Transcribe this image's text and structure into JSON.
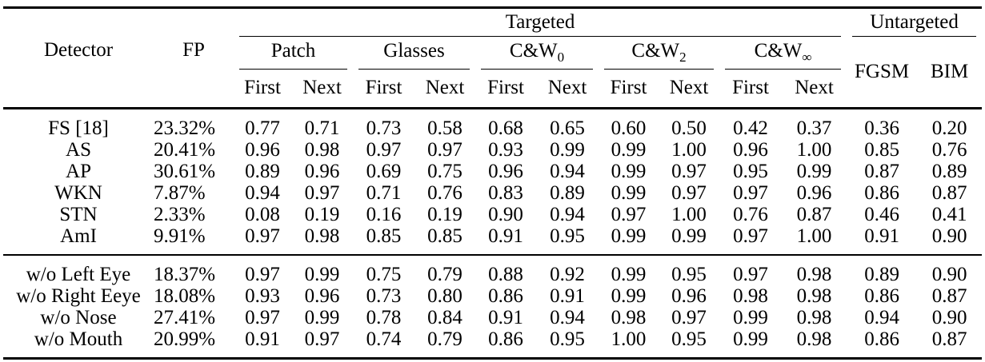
{
  "colors": {
    "background": "#ffffff",
    "text": "#000000"
  },
  "table": {
    "col_groups": {
      "targeted": "Targeted",
      "untargeted": "Untargeted"
    },
    "headers": {
      "detector": "Detector",
      "fp": "FP",
      "sub_columns": [
        "First",
        "Next"
      ],
      "attack_groups": [
        {
          "name": "Patch",
          "sub": ""
        },
        {
          "name": "Glasses",
          "sub": ""
        },
        {
          "name": "C&W",
          "sub": "0"
        },
        {
          "name": "C&W",
          "sub": "2"
        },
        {
          "name": "C&W",
          "sub": "∞"
        }
      ],
      "untargeted_columns": [
        "FGSM",
        "BIM"
      ]
    },
    "sections": [
      {
        "rows": [
          {
            "detector": "FS [18]",
            "fp": "23.32%",
            "values": [
              "0.77",
              "0.71",
              "0.73",
              "0.58",
              "0.68",
              "0.65",
              "0.60",
              "0.50",
              "0.42",
              "0.37",
              "0.36",
              "0.20"
            ]
          },
          {
            "detector": "AS",
            "fp": "20.41%",
            "values": [
              "0.96",
              "0.98",
              "0.97",
              "0.97",
              "0.93",
              "0.99",
              "0.99",
              "1.00",
              "0.96",
              "1.00",
              "0.85",
              "0.76"
            ]
          },
          {
            "detector": "AP",
            "fp": "30.61%",
            "values": [
              "0.89",
              "0.96",
              "0.69",
              "0.75",
              "0.96",
              "0.94",
              "0.99",
              "0.97",
              "0.95",
              "0.99",
              "0.87",
              "0.89"
            ]
          },
          {
            "detector": "WKN",
            "fp": "7.87%",
            "values": [
              "0.94",
              "0.97",
              "0.71",
              "0.76",
              "0.83",
              "0.89",
              "0.99",
              "0.97",
              "0.97",
              "0.96",
              "0.86",
              "0.87"
            ]
          },
          {
            "detector": "STN",
            "fp": "2.33%",
            "values": [
              "0.08",
              "0.19",
              "0.16",
              "0.19",
              "0.90",
              "0.94",
              "0.97",
              "1.00",
              "0.76",
              "0.87",
              "0.46",
              "0.41"
            ]
          },
          {
            "detector": "AmI",
            "fp": "9.91%",
            "values": [
              "0.97",
              "0.98",
              "0.85",
              "0.85",
              "0.91",
              "0.95",
              "0.99",
              "0.99",
              "0.97",
              "1.00",
              "0.91",
              "0.90"
            ]
          }
        ]
      },
      {
        "rows": [
          {
            "detector": "w/o Left Eye",
            "fp": "18.37%",
            "values": [
              "0.97",
              "0.99",
              "0.75",
              "0.79",
              "0.88",
              "0.92",
              "0.99",
              "0.95",
              "0.97",
              "0.98",
              "0.89",
              "0.90"
            ]
          },
          {
            "detector": "w/o Right Eeye",
            "fp": "18.08%",
            "values": [
              "0.93",
              "0.96",
              "0.73",
              "0.80",
              "0.86",
              "0.91",
              "0.99",
              "0.96",
              "0.98",
              "0.98",
              "0.86",
              "0.87"
            ]
          },
          {
            "detector": "w/o Nose",
            "fp": "27.41%",
            "values": [
              "0.97",
              "0.99",
              "0.78",
              "0.84",
              "0.91",
              "0.94",
              "0.98",
              "0.97",
              "0.99",
              "0.98",
              "0.94",
              "0.90"
            ]
          },
          {
            "detector": "w/o Mouth",
            "fp": "20.99%",
            "values": [
              "0.91",
              "0.97",
              "0.74",
              "0.79",
              "0.86",
              "0.95",
              "1.00",
              "0.95",
              "0.99",
              "0.98",
              "0.86",
              "0.87"
            ]
          }
        ]
      }
    ]
  }
}
